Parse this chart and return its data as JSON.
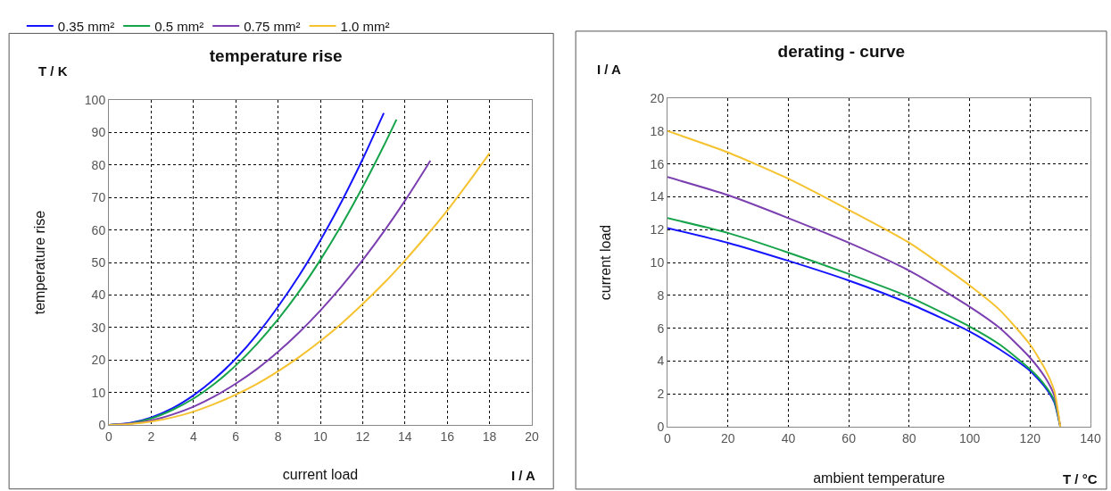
{
  "chart_data": [
    {
      "type": "line",
      "title": "temperature rise",
      "xlabel": "current load",
      "ylabel": "temperature rise",
      "annotations": [
        "T / K",
        "I / A"
      ],
      "xlim": [
        0,
        20
      ],
      "ylim": [
        0,
        100
      ],
      "xticks": [
        0,
        2,
        4,
        6,
        8,
        10,
        12,
        14,
        16,
        18,
        20
      ],
      "yticks": [
        0,
        10,
        20,
        30,
        40,
        50,
        60,
        70,
        80,
        90,
        100
      ],
      "grid": true,
      "legend": "top left",
      "marker": "none",
      "line_style": "solid",
      "series": [
        {
          "name": "0.35 mm²",
          "color": "#1414ff",
          "x": [
            0,
            1,
            2,
            3,
            4,
            5,
            6,
            7,
            8,
            9,
            10,
            11,
            12,
            13
          ],
          "values": [
            0,
            0.6,
            2.3,
            5.1,
            9.1,
            14.2,
            20.4,
            27.8,
            36.4,
            46,
            56.8,
            68.7,
            81.8,
            96
          ]
        },
        {
          "name": "0.5 mm²",
          "color": "#16a34a",
          "x": [
            0,
            1,
            2,
            3,
            4,
            5,
            6,
            7,
            8,
            9,
            10,
            11,
            12,
            13,
            13.6
          ],
          "values": [
            0,
            0.5,
            2,
            4.6,
            8.1,
            12.7,
            18.3,
            24.9,
            32.5,
            41.1,
            50.8,
            61.5,
            73.2,
            85.9,
            94
          ]
        },
        {
          "name": "0.75 mm²",
          "color": "#7b3fb0",
          "x": [
            0,
            1,
            2,
            3,
            4,
            5,
            6,
            7,
            8,
            9,
            10,
            11,
            12,
            13,
            14,
            15,
            15.2
          ],
          "values": [
            0,
            0.4,
            1.4,
            3.2,
            5.6,
            8.8,
            12.7,
            17.2,
            22.5,
            28.5,
            35.2,
            42.6,
            50.7,
            59.5,
            69,
            79.2,
            81.3
          ]
        },
        {
          "name": "1.0 mm²",
          "color": "#f5c230",
          "x": [
            0,
            1,
            2,
            3,
            4,
            5,
            6,
            7,
            8,
            9,
            10,
            11,
            12,
            13,
            14,
            15,
            16,
            17,
            18
          ],
          "values": [
            0,
            0.3,
            1,
            2.3,
            4.1,
            6.5,
            9.3,
            12.6,
            16.5,
            20.9,
            25.8,
            31.2,
            37.2,
            43.6,
            50.6,
            58.1,
            66,
            74.6,
            83.6
          ]
        }
      ]
    },
    {
      "type": "line",
      "title": "derating - curve",
      "xlabel": "ambient temperature",
      "ylabel": "current load",
      "annotations": [
        "I / A",
        "T / °C"
      ],
      "xlim": [
        0,
        140
      ],
      "ylim": [
        0,
        20
      ],
      "xticks": [
        0,
        20,
        40,
        60,
        80,
        100,
        120,
        140
      ],
      "yticks": [
        0,
        2,
        4,
        6,
        8,
        10,
        12,
        14,
        16,
        18,
        20
      ],
      "grid": true,
      "marker": "none",
      "line_style": "solid",
      "series": [
        {
          "color": "#1414ff",
          "x": [
            0,
            20,
            40,
            60,
            80,
            100,
            110,
            120,
            125,
            128,
            130
          ],
          "values": [
            12.1,
            11.2,
            10.1,
            8.9,
            7.5,
            5.8,
            4.7,
            3.4,
            2.4,
            1.5,
            0
          ]
        },
        {
          "color": "#16a34a",
          "x": [
            0,
            20,
            40,
            60,
            80,
            100,
            110,
            120,
            125,
            128,
            130
          ],
          "values": [
            12.7,
            11.8,
            10.6,
            9.3,
            7.9,
            6.1,
            5,
            3.5,
            2.5,
            1.6,
            0
          ]
        },
        {
          "color": "#7b3fb0",
          "x": [
            0,
            20,
            40,
            60,
            80,
            100,
            110,
            120,
            125,
            128,
            130
          ],
          "values": [
            15.2,
            14.1,
            12.7,
            11.2,
            9.5,
            7.3,
            6,
            4.2,
            3,
            1.9,
            0
          ]
        },
        {
          "color": "#f5c230",
          "x": [
            0,
            20,
            40,
            60,
            80,
            100,
            110,
            120,
            125,
            128,
            130
          ],
          "values": [
            18,
            16.7,
            15.1,
            13.2,
            11.2,
            8.6,
            7.1,
            5,
            3.5,
            2.2,
            0
          ]
        }
      ]
    }
  ]
}
